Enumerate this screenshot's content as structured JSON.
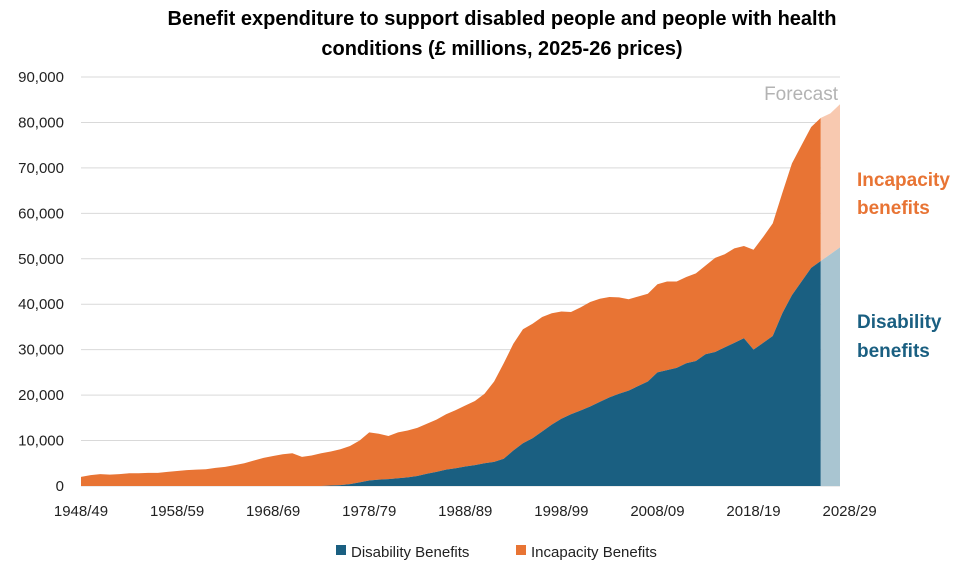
{
  "colors": {
    "disability": "#1a5f81",
    "incapacity": "#e87434",
    "disability_forecast": "#a9c5d1",
    "incapacity_forecast": "#f8c9b0",
    "gridline": "#d9d9d9",
    "forecast_text": "#b3b3b3"
  },
  "chart_data": {
    "type": "area",
    "stacked": true,
    "title": "Benefit expenditure to support disabled people and people with health conditions (£ millions, 2025-26 prices)",
    "title_lines": [
      "Benefit expenditure to support disabled people and people with health",
      "conditions (£ millions, 2025-26 prices)"
    ],
    "xlabel": "",
    "ylabel": "",
    "ylim": [
      0,
      90000
    ],
    "y_ticks": [
      0,
      10000,
      20000,
      30000,
      40000,
      50000,
      60000,
      70000,
      80000,
      90000
    ],
    "y_tick_labels": [
      "0",
      "10,000",
      "20,000",
      "30,000",
      "40,000",
      "50,000",
      "60,000",
      "70,000",
      "80,000",
      "90,000"
    ],
    "x_tick_labels": [
      "1948/49",
      "1958/59",
      "1968/69",
      "1978/79",
      "1988/89",
      "1998/99",
      "2008/09",
      "2018/19",
      "2028/29"
    ],
    "x_tick_year_index": [
      0,
      10,
      20,
      30,
      40,
      50,
      60,
      70,
      80
    ],
    "grid": true,
    "legend_position": "bottom",
    "forecast_label": "Forecast",
    "forecast_start_index": 77,
    "side_labels": {
      "incapacity": [
        "Incapacity",
        "benefits"
      ],
      "disability": [
        "Disability",
        "benefits"
      ]
    },
    "series": [
      {
        "name": "Disability Benefits",
        "stacked_values": [
          0,
          0,
          0,
          0,
          0,
          0,
          0,
          0,
          0,
          0,
          0,
          0,
          0,
          0,
          0,
          0,
          0,
          0,
          0,
          0,
          0,
          0,
          0,
          0,
          0,
          0,
          100,
          200,
          400,
          800,
          1200,
          1400,
          1500,
          1700,
          1900,
          2200,
          2700,
          3100,
          3600,
          3900,
          4300,
          4600,
          5000,
          5300,
          6000,
          7800,
          9400,
          10500,
          12000,
          13500,
          14800,
          15800,
          16600,
          17500,
          18500,
          19500,
          20300,
          21000,
          22000,
          23000,
          25000,
          25500,
          26000,
          27000,
          27500,
          29000,
          29500,
          30500,
          31500,
          32500,
          30000,
          31500,
          33000,
          38000,
          42000,
          45000,
          48000,
          49500,
          51000,
          52500
        ]
      },
      {
        "name": "Incapacity Benefits",
        "stacked_values": [
          2000,
          2400,
          2600,
          2500,
          2600,
          2800,
          2800,
          2900,
          2900,
          3100,
          3300,
          3500,
          3600,
          3700,
          4000,
          4200,
          4600,
          5000,
          5600,
          6200,
          6600,
          7000,
          7200,
          6400,
          6700,
          7200,
          7600,
          8100,
          8800,
          10000,
          11800,
          11500,
          11000,
          11800,
          12200,
          12800,
          13700,
          14600,
          15800,
          16700,
          17700,
          18700,
          20300,
          23000,
          27000,
          31300,
          34500,
          35700,
          37200,
          38000,
          38400,
          38300,
          39300,
          40500,
          41200,
          41600,
          41500,
          41100,
          41700,
          42300,
          44400,
          45000,
          45000,
          46000,
          46800,
          48500,
          50200,
          51000,
          52300,
          52800,
          52000,
          54800,
          57800,
          64500,
          71000,
          75000,
          79000,
          81000,
          82000,
          84000
        ]
      }
    ]
  }
}
